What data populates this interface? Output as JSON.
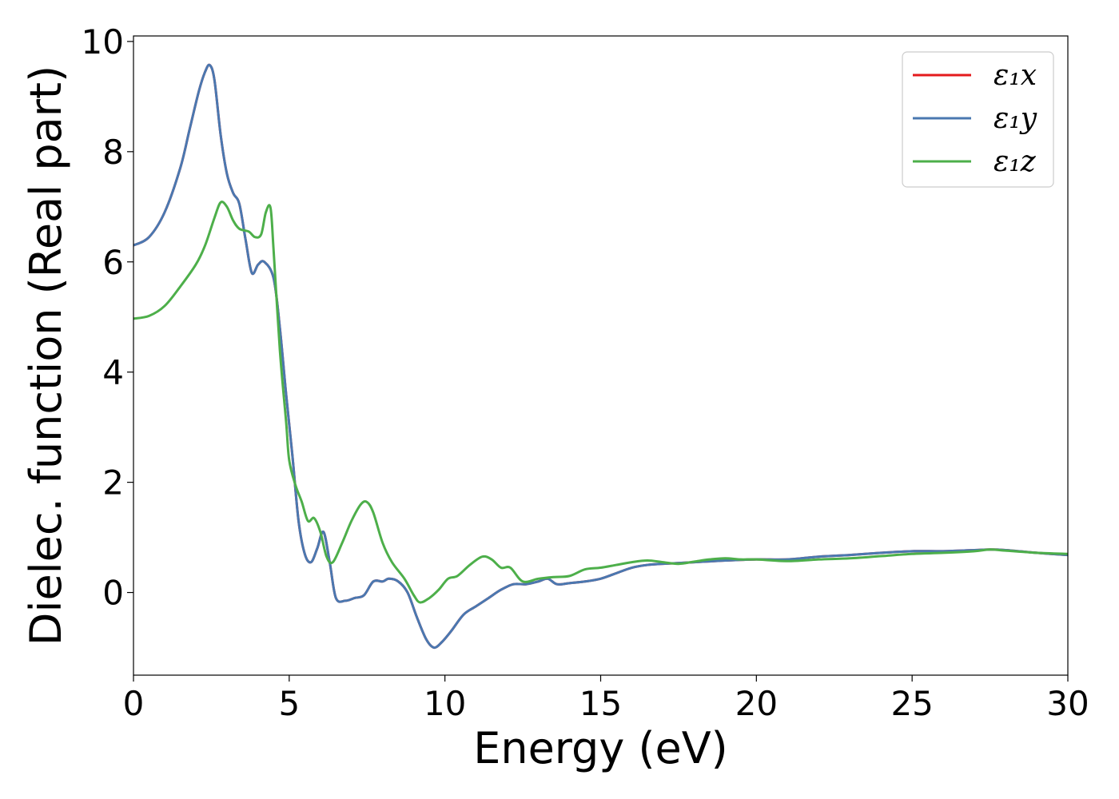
{
  "chart_data": {
    "type": "line",
    "xlabel": "Energy (eV)",
    "ylabel": "Dielec. function (Real part)",
    "xlim": [
      0,
      30
    ],
    "ylim": [
      -1.5,
      10.1
    ],
    "xticks": [
      0,
      5,
      10,
      15,
      20,
      25,
      30
    ],
    "yticks": [
      0,
      2,
      4,
      6,
      8,
      10
    ],
    "grid": false,
    "legend_position": "top-right",
    "series": [
      {
        "name": "ε₁x",
        "color": "#e41a1c",
        "x": [
          0,
          0.5,
          1.0,
          1.5,
          1.8,
          2.1,
          2.3,
          2.45,
          2.6,
          2.8,
          3.0,
          3.2,
          3.4,
          3.6,
          3.8,
          4.0,
          4.2,
          4.5,
          4.7,
          4.9,
          5.1,
          5.3,
          5.5,
          5.7,
          5.9,
          6.1,
          6.3,
          6.5,
          6.8,
          7.1,
          7.4,
          7.7,
          8.0,
          8.2,
          8.5,
          8.8,
          9.1,
          9.4,
          9.65,
          9.9,
          10.2,
          10.6,
          11.0,
          11.4,
          11.8,
          12.2,
          12.6,
          13.0,
          13.3,
          13.6,
          14.0,
          14.5,
          15.0,
          15.5,
          16.0,
          16.5,
          17.0,
          18.0,
          19.0,
          20.0,
          21.0,
          22.0,
          23.0,
          24.0,
          25.0,
          26.0,
          27.0,
          27.5,
          28.0,
          29.0,
          30.0
        ],
        "y": [
          6.3,
          6.45,
          6.9,
          7.7,
          8.4,
          9.1,
          9.45,
          9.57,
          9.3,
          8.3,
          7.6,
          7.25,
          7.05,
          6.4,
          5.8,
          5.95,
          6.0,
          5.7,
          4.8,
          3.6,
          2.5,
          1.3,
          0.7,
          0.55,
          0.8,
          1.1,
          0.55,
          -0.1,
          -0.15,
          -0.1,
          -0.05,
          0.2,
          0.2,
          0.25,
          0.2,
          0.0,
          -0.45,
          -0.85,
          -1.0,
          -0.9,
          -0.7,
          -0.4,
          -0.25,
          -0.1,
          0.05,
          0.15,
          0.15,
          0.2,
          0.25,
          0.15,
          0.17,
          0.2,
          0.25,
          0.35,
          0.45,
          0.5,
          0.52,
          0.55,
          0.58,
          0.6,
          0.6,
          0.65,
          0.68,
          0.72,
          0.75,
          0.75,
          0.77,
          0.78,
          0.77,
          0.72,
          0.68
        ]
      },
      {
        "name": "ε₁y",
        "color": "#4a78b0",
        "x": [
          0,
          0.5,
          1.0,
          1.5,
          1.8,
          2.1,
          2.3,
          2.45,
          2.6,
          2.8,
          3.0,
          3.2,
          3.4,
          3.6,
          3.8,
          4.0,
          4.2,
          4.5,
          4.7,
          4.9,
          5.1,
          5.3,
          5.5,
          5.7,
          5.9,
          6.1,
          6.3,
          6.5,
          6.8,
          7.1,
          7.4,
          7.7,
          8.0,
          8.2,
          8.5,
          8.8,
          9.1,
          9.4,
          9.65,
          9.9,
          10.2,
          10.6,
          11.0,
          11.4,
          11.8,
          12.2,
          12.6,
          13.0,
          13.3,
          13.6,
          14.0,
          14.5,
          15.0,
          15.5,
          16.0,
          16.5,
          17.0,
          18.0,
          19.0,
          20.0,
          21.0,
          22.0,
          23.0,
          24.0,
          25.0,
          26.0,
          27.0,
          27.5,
          28.0,
          29.0,
          30.0
        ],
        "y": [
          6.3,
          6.45,
          6.9,
          7.7,
          8.4,
          9.1,
          9.45,
          9.57,
          9.3,
          8.3,
          7.6,
          7.25,
          7.05,
          6.4,
          5.8,
          5.95,
          6.0,
          5.7,
          4.8,
          3.6,
          2.5,
          1.3,
          0.7,
          0.55,
          0.8,
          1.1,
          0.55,
          -0.1,
          -0.15,
          -0.1,
          -0.05,
          0.2,
          0.2,
          0.25,
          0.2,
          0.0,
          -0.45,
          -0.85,
          -1.0,
          -0.9,
          -0.7,
          -0.4,
          -0.25,
          -0.1,
          0.05,
          0.15,
          0.15,
          0.2,
          0.25,
          0.15,
          0.17,
          0.2,
          0.25,
          0.35,
          0.45,
          0.5,
          0.52,
          0.55,
          0.58,
          0.6,
          0.6,
          0.65,
          0.68,
          0.72,
          0.75,
          0.75,
          0.77,
          0.78,
          0.77,
          0.72,
          0.68
        ]
      },
      {
        "name": "ε₁z",
        "color": "#4daf4a",
        "x": [
          0,
          0.5,
          1.0,
          1.5,
          2.0,
          2.3,
          2.6,
          2.8,
          3.0,
          3.2,
          3.4,
          3.7,
          3.9,
          4.1,
          4.25,
          4.4,
          4.5,
          4.7,
          4.9,
          5.0,
          5.2,
          5.4,
          5.6,
          5.8,
          6.0,
          6.2,
          6.4,
          6.7,
          7.0,
          7.3,
          7.5,
          7.7,
          8.0,
          8.3,
          8.7,
          9.0,
          9.2,
          9.5,
          9.8,
          10.1,
          10.4,
          10.8,
          11.2,
          11.5,
          11.8,
          12.1,
          12.5,
          13.0,
          13.5,
          14.0,
          14.5,
          15.0,
          15.5,
          16.0,
          16.5,
          17.0,
          17.5,
          18.0,
          18.5,
          19.0,
          19.5,
          20.0,
          21.0,
          22.0,
          23.0,
          24.0,
          25.0,
          26.0,
          27.0,
          27.5,
          28.0,
          29.0,
          30.0
        ],
        "y": [
          4.97,
          5.02,
          5.2,
          5.55,
          5.95,
          6.3,
          6.8,
          7.08,
          7.0,
          6.75,
          6.6,
          6.55,
          6.45,
          6.5,
          6.9,
          6.98,
          6.2,
          4.4,
          3.1,
          2.4,
          1.95,
          1.65,
          1.3,
          1.35,
          1.1,
          0.65,
          0.55,
          0.9,
          1.3,
          1.6,
          1.64,
          1.45,
          0.9,
          0.55,
          0.25,
          -0.05,
          -0.18,
          -0.1,
          0.05,
          0.25,
          0.3,
          0.5,
          0.65,
          0.6,
          0.45,
          0.45,
          0.2,
          0.25,
          0.28,
          0.3,
          0.42,
          0.45,
          0.5,
          0.55,
          0.58,
          0.55,
          0.52,
          0.56,
          0.6,
          0.62,
          0.6,
          0.6,
          0.57,
          0.6,
          0.62,
          0.66,
          0.7,
          0.72,
          0.75,
          0.78,
          0.76,
          0.72,
          0.7
        ]
      }
    ]
  }
}
